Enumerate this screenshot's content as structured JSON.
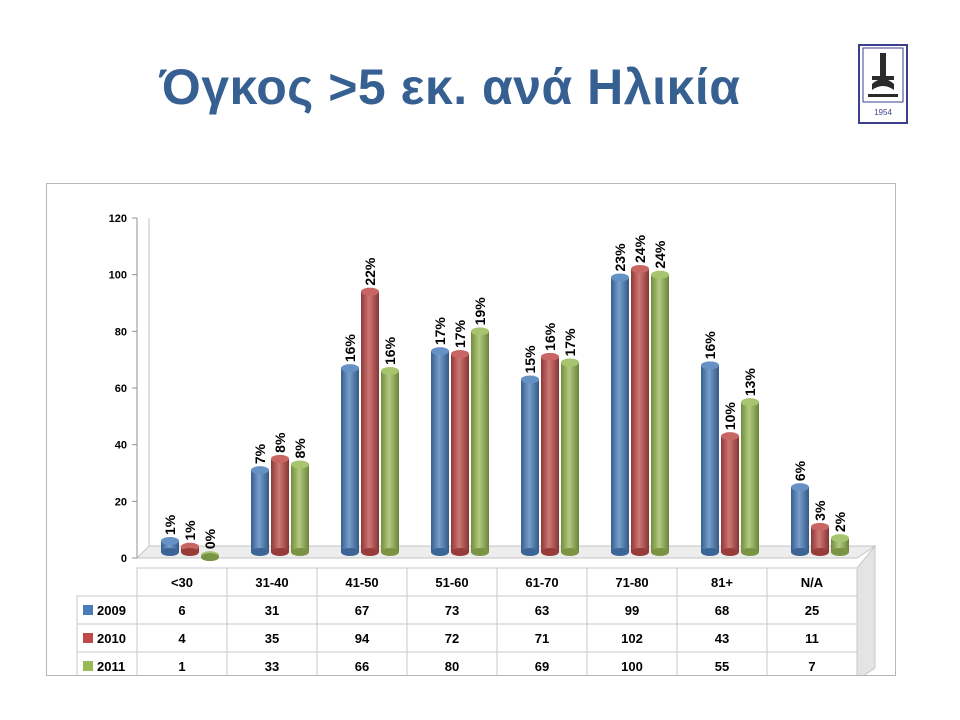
{
  "title": "Όγκος >5 εκ. ανά Ηλικία",
  "logo": {
    "icon": "institution-logo-icon",
    "year_text": "1954"
  },
  "chart_data": {
    "type": "bar",
    "categories": [
      "<30",
      "31-40",
      "41-50",
      "51-60",
      "61-70",
      "71-80",
      "81+",
      "N/A"
    ],
    "series": [
      {
        "name": "2009",
        "color": "#4a7ebb",
        "values": [
          6,
          31,
          67,
          73,
          63,
          99,
          68,
          25
        ],
        "labels": [
          "1%",
          "7%",
          "16%",
          "17%",
          "15%",
          "23%",
          "16%",
          "6%"
        ]
      },
      {
        "name": "2010",
        "color": "#be4b48",
        "values": [
          4,
          35,
          94,
          72,
          71,
          102,
          43,
          11
        ],
        "labels": [
          "1%",
          "8%",
          "22%",
          "17%",
          "16%",
          "24%",
          "10%",
          "3%"
        ]
      },
      {
        "name": "2011",
        "color": "#98b954",
        "values": [
          1,
          33,
          66,
          80,
          69,
          100,
          55,
          7
        ],
        "labels": [
          "0%",
          "8%",
          "16%",
          "19%",
          "17%",
          "24%",
          "13%",
          "2%"
        ]
      }
    ],
    "yticks": [
      "0",
      "20",
      "40",
      "60",
      "80",
      "100",
      "120"
    ],
    "ylim": [
      0,
      120
    ],
    "grid": false,
    "legend": "data-table-left",
    "table_cells": {
      "2009": [
        "6",
        "31",
        "67",
        "73",
        "63",
        "99",
        "68",
        "25"
      ],
      "2010": [
        "4",
        "35",
        "94",
        "72",
        "71",
        "102",
        "43",
        "11"
      ],
      "2011": [
        "1",
        "33",
        "66",
        "80",
        "69",
        "100",
        "55",
        "7"
      ]
    }
  }
}
